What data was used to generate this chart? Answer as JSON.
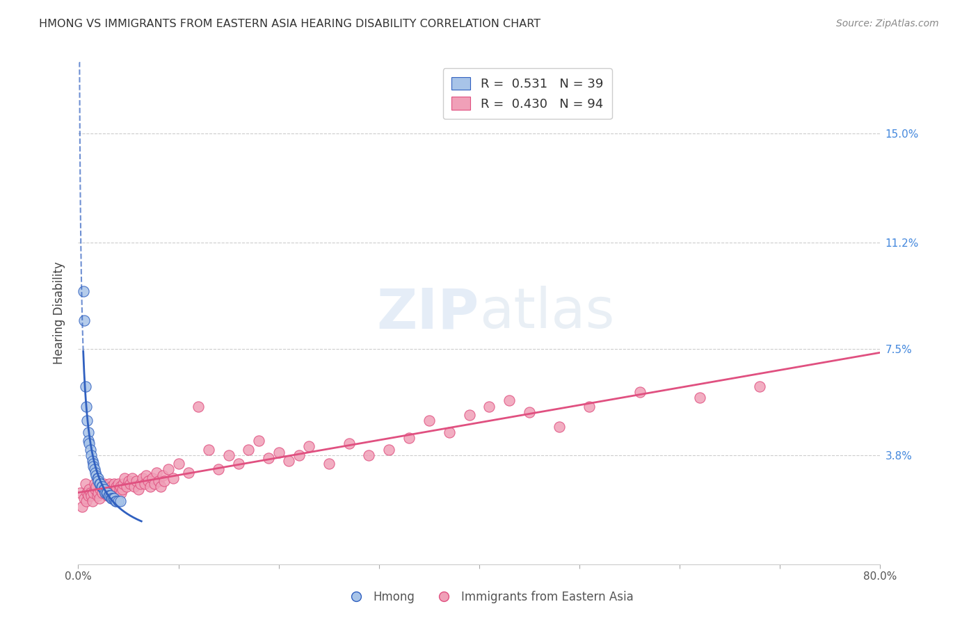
{
  "title": "HMONG VS IMMIGRANTS FROM EASTERN ASIA HEARING DISABILITY CORRELATION CHART",
  "source": "Source: ZipAtlas.com",
  "ylabel": "Hearing Disability",
  "ytick_labels": [
    "15.0%",
    "11.2%",
    "7.5%",
    "3.8%"
  ],
  "ytick_values": [
    0.15,
    0.112,
    0.075,
    0.038
  ],
  "xlim": [
    0.0,
    0.8
  ],
  "ylim": [
    0.0,
    0.175
  ],
  "hmong_R": 0.531,
  "hmong_N": 39,
  "eastern_asia_R": 0.43,
  "eastern_asia_N": 94,
  "legend_hmong": "Hmong",
  "legend_eastern": "Immigrants from Eastern Asia",
  "hmong_color": "#a8c4e8",
  "hmong_line_color": "#3060c0",
  "eastern_color": "#f0a0b8",
  "eastern_line_color": "#e05080",
  "background_color": "#ffffff",
  "watermark_zip": "ZIP",
  "watermark_atlas": "atlas",
  "hmong_x": [
    0.005,
    0.006,
    0.007,
    0.008,
    0.009,
    0.01,
    0.01,
    0.011,
    0.012,
    0.013,
    0.014,
    0.015,
    0.015,
    0.016,
    0.017,
    0.018,
    0.019,
    0.02,
    0.02,
    0.021,
    0.022,
    0.023,
    0.024,
    0.025,
    0.026,
    0.027,
    0.028,
    0.029,
    0.03,
    0.031,
    0.032,
    0.033,
    0.034,
    0.035,
    0.036,
    0.037,
    0.038,
    0.04,
    0.042
  ],
  "hmong_y": [
    0.095,
    0.085,
    0.062,
    0.055,
    0.05,
    0.046,
    0.043,
    0.042,
    0.04,
    0.038,
    0.036,
    0.035,
    0.034,
    0.033,
    0.032,
    0.031,
    0.03,
    0.03,
    0.029,
    0.028,
    0.028,
    0.027,
    0.027,
    0.026,
    0.026,
    0.025,
    0.025,
    0.025,
    0.024,
    0.024,
    0.024,
    0.023,
    0.023,
    0.023,
    0.023,
    0.022,
    0.022,
    0.022,
    0.022
  ],
  "eastern_x": [
    0.002,
    0.004,
    0.006,
    0.007,
    0.008,
    0.009,
    0.01,
    0.011,
    0.012,
    0.013,
    0.014,
    0.015,
    0.016,
    0.017,
    0.018,
    0.019,
    0.02,
    0.021,
    0.022,
    0.023,
    0.024,
    0.025,
    0.026,
    0.027,
    0.028,
    0.029,
    0.03,
    0.031,
    0.032,
    0.033,
    0.034,
    0.035,
    0.036,
    0.037,
    0.038,
    0.04,
    0.041,
    0.042,
    0.043,
    0.044,
    0.045,
    0.046,
    0.048,
    0.05,
    0.052,
    0.054,
    0.056,
    0.058,
    0.06,
    0.062,
    0.064,
    0.066,
    0.068,
    0.07,
    0.072,
    0.074,
    0.076,
    0.078,
    0.08,
    0.082,
    0.084,
    0.086,
    0.09,
    0.095,
    0.1,
    0.11,
    0.12,
    0.13,
    0.14,
    0.15,
    0.16,
    0.17,
    0.18,
    0.19,
    0.2,
    0.21,
    0.22,
    0.23,
    0.25,
    0.27,
    0.29,
    0.31,
    0.33,
    0.35,
    0.37,
    0.39,
    0.41,
    0.43,
    0.45,
    0.48,
    0.51,
    0.56,
    0.62,
    0.68
  ],
  "eastern_y": [
    0.025,
    0.02,
    0.023,
    0.028,
    0.022,
    0.025,
    0.024,
    0.026,
    0.025,
    0.024,
    0.022,
    0.025,
    0.028,
    0.026,
    0.027,
    0.024,
    0.025,
    0.023,
    0.026,
    0.027,
    0.025,
    0.028,
    0.026,
    0.025,
    0.027,
    0.024,
    0.026,
    0.028,
    0.025,
    0.027,
    0.026,
    0.024,
    0.028,
    0.025,
    0.027,
    0.028,
    0.026,
    0.027,
    0.025,
    0.026,
    0.028,
    0.03,
    0.027,
    0.029,
    0.028,
    0.03,
    0.027,
    0.029,
    0.026,
    0.028,
    0.03,
    0.028,
    0.031,
    0.029,
    0.027,
    0.03,
    0.028,
    0.032,
    0.029,
    0.027,
    0.031,
    0.029,
    0.033,
    0.03,
    0.035,
    0.032,
    0.055,
    0.04,
    0.033,
    0.038,
    0.035,
    0.04,
    0.043,
    0.037,
    0.039,
    0.036,
    0.038,
    0.041,
    0.035,
    0.042,
    0.038,
    0.04,
    0.044,
    0.05,
    0.046,
    0.052,
    0.055,
    0.057,
    0.053,
    0.048,
    0.055,
    0.06,
    0.058,
    0.062
  ]
}
